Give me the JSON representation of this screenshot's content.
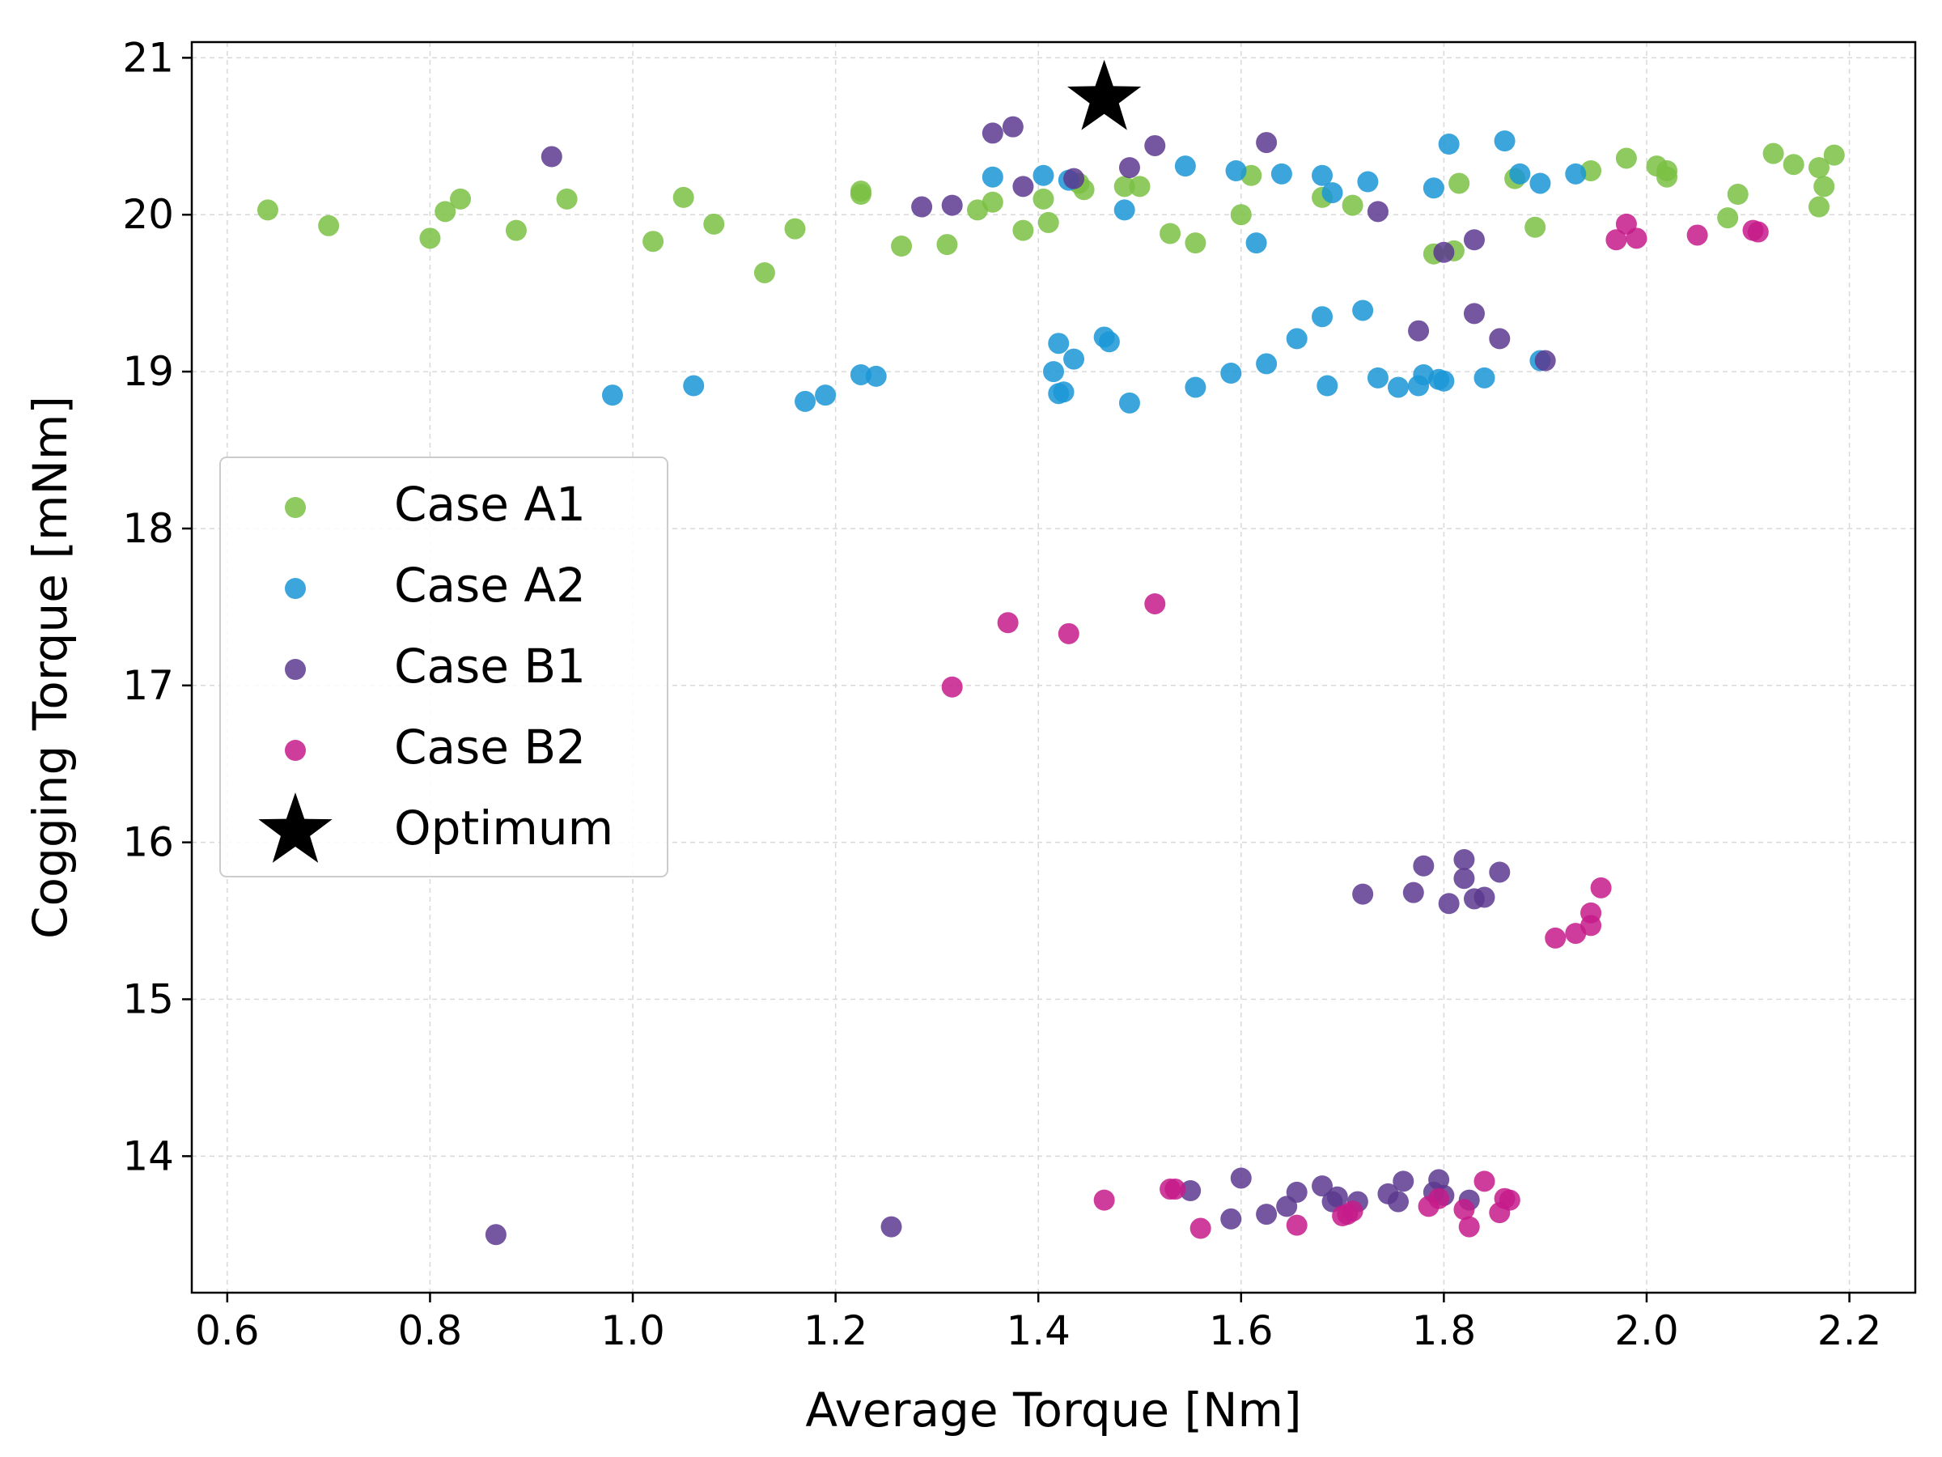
{
  "chart_data": {
    "type": "scatter",
    "xlabel": "Average Torque [Nm]",
    "ylabel": "Cogging Torque [mNm]",
    "xlim": [
      0.565,
      2.265
    ],
    "ylim": [
      13.13,
      21.1
    ],
    "x_ticks": [
      0.6,
      0.8,
      1.0,
      1.2,
      1.4,
      1.6,
      1.8,
      2.0,
      2.2
    ],
    "x_tick_labels": [
      "0.6",
      "0.8",
      "1.0",
      "1.2",
      "1.4",
      "1.6",
      "1.8",
      "2.0",
      "2.2"
    ],
    "y_ticks": [
      14,
      15,
      16,
      17,
      18,
      19,
      20,
      21
    ],
    "y_tick_labels": [
      "14",
      "15",
      "16",
      "17",
      "18",
      "19",
      "20",
      "21"
    ],
    "grid": true,
    "legend_position": "center-left",
    "series": [
      {
        "name": "Case A1",
        "color": "#7ac143",
        "marker": "circle",
        "points": [
          [
            0.64,
            20.03
          ],
          [
            0.7,
            19.93
          ],
          [
            0.8,
            19.85
          ],
          [
            0.815,
            20.02
          ],
          [
            0.83,
            20.1
          ],
          [
            0.885,
            19.9
          ],
          [
            0.935,
            20.1
          ],
          [
            1.02,
            19.83
          ],
          [
            1.05,
            20.11
          ],
          [
            1.08,
            19.94
          ],
          [
            1.13,
            19.63
          ],
          [
            1.16,
            19.91
          ],
          [
            1.225,
            20.15
          ],
          [
            1.225,
            20.13
          ],
          [
            1.265,
            19.8
          ],
          [
            1.31,
            19.81
          ],
          [
            1.34,
            20.03
          ],
          [
            1.355,
            20.08
          ],
          [
            1.385,
            19.9
          ],
          [
            1.405,
            20.1
          ],
          [
            1.41,
            19.95
          ],
          [
            1.44,
            20.2
          ],
          [
            1.445,
            20.16
          ],
          [
            1.485,
            20.18
          ],
          [
            1.5,
            20.18
          ],
          [
            1.53,
            19.88
          ],
          [
            1.555,
            19.82
          ],
          [
            1.6,
            20.0
          ],
          [
            1.61,
            20.25
          ],
          [
            1.68,
            20.11
          ],
          [
            1.71,
            20.06
          ],
          [
            1.79,
            19.75
          ],
          [
            1.81,
            19.77
          ],
          [
            1.815,
            20.2
          ],
          [
            1.87,
            20.23
          ],
          [
            1.89,
            19.92
          ],
          [
            1.945,
            20.28
          ],
          [
            1.98,
            20.36
          ],
          [
            2.01,
            20.31
          ],
          [
            2.02,
            20.28
          ],
          [
            2.02,
            20.24
          ],
          [
            2.08,
            19.98
          ],
          [
            2.09,
            20.13
          ],
          [
            2.125,
            20.39
          ],
          [
            2.145,
            20.32
          ],
          [
            2.17,
            20.05
          ],
          [
            2.17,
            20.3
          ],
          [
            2.175,
            20.18
          ],
          [
            2.185,
            20.38
          ]
        ]
      },
      {
        "name": "Case A2",
        "color": "#1a96d6",
        "marker": "circle",
        "points": [
          [
            0.98,
            18.85
          ],
          [
            1.06,
            18.91
          ],
          [
            1.17,
            18.81
          ],
          [
            1.19,
            18.85
          ],
          [
            1.225,
            18.98
          ],
          [
            1.24,
            18.97
          ],
          [
            1.355,
            20.24
          ],
          [
            1.405,
            20.25
          ],
          [
            1.415,
            19.0
          ],
          [
            1.42,
            19.18
          ],
          [
            1.42,
            18.86
          ],
          [
            1.425,
            18.87
          ],
          [
            1.43,
            20.22
          ],
          [
            1.435,
            19.08
          ],
          [
            1.465,
            19.22
          ],
          [
            1.47,
            19.19
          ],
          [
            1.485,
            20.03
          ],
          [
            1.49,
            18.8
          ],
          [
            1.545,
            20.31
          ],
          [
            1.555,
            18.9
          ],
          [
            1.59,
            18.99
          ],
          [
            1.595,
            20.28
          ],
          [
            1.615,
            19.82
          ],
          [
            1.625,
            19.05
          ],
          [
            1.64,
            20.26
          ],
          [
            1.655,
            19.21
          ],
          [
            1.68,
            19.35
          ],
          [
            1.68,
            20.25
          ],
          [
            1.685,
            18.91
          ],
          [
            1.69,
            20.14
          ],
          [
            1.72,
            19.39
          ],
          [
            1.725,
            20.21
          ],
          [
            1.735,
            18.96
          ],
          [
            1.755,
            18.9
          ],
          [
            1.775,
            18.91
          ],
          [
            1.78,
            18.98
          ],
          [
            1.79,
            20.17
          ],
          [
            1.795,
            18.95
          ],
          [
            1.8,
            18.94
          ],
          [
            1.805,
            20.45
          ],
          [
            1.84,
            18.96
          ],
          [
            1.86,
            20.47
          ],
          [
            1.875,
            20.26
          ],
          [
            1.895,
            20.2
          ],
          [
            1.895,
            19.07
          ],
          [
            1.93,
            20.26
          ]
        ]
      },
      {
        "name": "Case B1",
        "color": "#5c3a8f",
        "marker": "circle",
        "points": [
          [
            0.865,
            13.5
          ],
          [
            0.92,
            20.37
          ],
          [
            1.255,
            13.55
          ],
          [
            1.285,
            20.05
          ],
          [
            1.315,
            20.06
          ],
          [
            1.355,
            20.52
          ],
          [
            1.375,
            20.56
          ],
          [
            1.385,
            20.18
          ],
          [
            1.435,
            20.23
          ],
          [
            1.49,
            20.3
          ],
          [
            1.515,
            20.44
          ],
          [
            1.55,
            13.78
          ],
          [
            1.59,
            13.6
          ],
          [
            1.6,
            13.86
          ],
          [
            1.625,
            13.63
          ],
          [
            1.625,
            20.46
          ],
          [
            1.645,
            13.68
          ],
          [
            1.655,
            13.77
          ],
          [
            1.68,
            13.81
          ],
          [
            1.69,
            13.71
          ],
          [
            1.695,
            13.74
          ],
          [
            1.715,
            13.71
          ],
          [
            1.72,
            15.67
          ],
          [
            1.735,
            20.02
          ],
          [
            1.745,
            13.76
          ],
          [
            1.755,
            13.71
          ],
          [
            1.76,
            13.84
          ],
          [
            1.77,
            15.68
          ],
          [
            1.775,
            19.26
          ],
          [
            1.78,
            15.85
          ],
          [
            1.79,
            13.77
          ],
          [
            1.795,
            13.85
          ],
          [
            1.8,
            19.76
          ],
          [
            1.8,
            13.75
          ],
          [
            1.805,
            15.61
          ],
          [
            1.82,
            15.89
          ],
          [
            1.82,
            15.77
          ],
          [
            1.825,
            13.72
          ],
          [
            1.83,
            15.64
          ],
          [
            1.83,
            19.37
          ],
          [
            1.83,
            19.84
          ],
          [
            1.84,
            15.65
          ],
          [
            1.855,
            19.21
          ],
          [
            1.855,
            15.81
          ],
          [
            1.9,
            19.07
          ]
        ]
      },
      {
        "name": "Case B2",
        "color": "#c51b8a",
        "marker": "circle",
        "points": [
          [
            1.315,
            16.99
          ],
          [
            1.37,
            17.4
          ],
          [
            1.43,
            17.33
          ],
          [
            1.465,
            13.72
          ],
          [
            1.515,
            17.52
          ],
          [
            1.53,
            13.79
          ],
          [
            1.535,
            13.79
          ],
          [
            1.56,
            13.54
          ],
          [
            1.655,
            13.56
          ],
          [
            1.7,
            13.62
          ],
          [
            1.705,
            13.63
          ],
          [
            1.71,
            13.65
          ],
          [
            1.785,
            13.68
          ],
          [
            1.795,
            13.73
          ],
          [
            1.82,
            13.66
          ],
          [
            1.825,
            13.55
          ],
          [
            1.84,
            13.84
          ],
          [
            1.855,
            13.64
          ],
          [
            1.86,
            13.73
          ],
          [
            1.865,
            13.72
          ],
          [
            1.91,
            15.39
          ],
          [
            1.93,
            15.42
          ],
          [
            1.945,
            15.47
          ],
          [
            1.945,
            15.55
          ],
          [
            1.955,
            15.71
          ],
          [
            1.97,
            19.84
          ],
          [
            1.98,
            19.94
          ],
          [
            1.99,
            19.85
          ],
          [
            2.05,
            19.87
          ],
          [
            2.105,
            19.9
          ],
          [
            2.11,
            19.89
          ]
        ]
      },
      {
        "name": "Optimum",
        "color": "#000000",
        "marker": "star",
        "points": [
          [
            1.465,
            20.74
          ]
        ]
      }
    ]
  }
}
